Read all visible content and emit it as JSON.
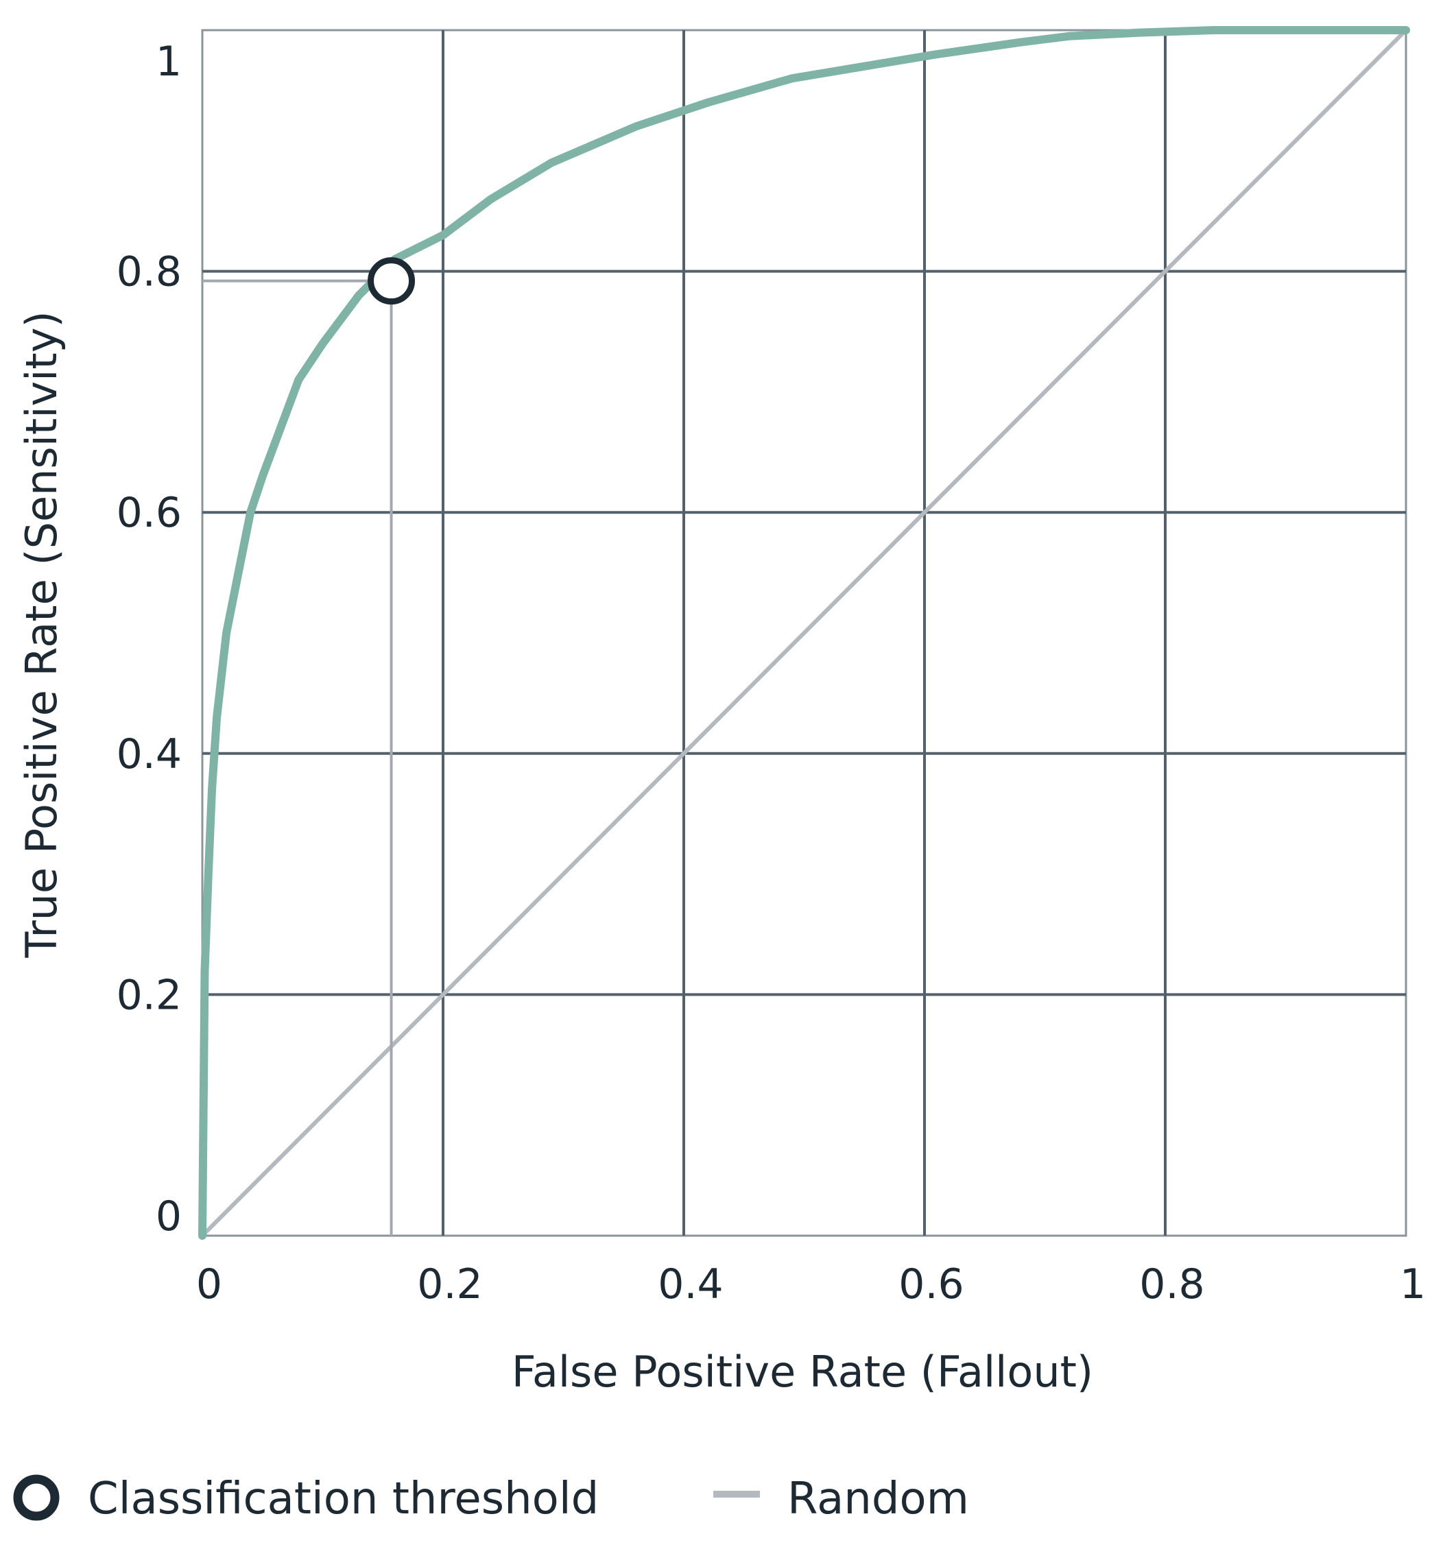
{
  "chart_data": {
    "type": "line",
    "xlabel": "False Positive Rate (Fallout)",
    "ylabel": "True Positive Rate (Sensitivity)",
    "xlim": [
      0,
      1
    ],
    "ylim": [
      0,
      1
    ],
    "x_ticks": [
      "0",
      "0.2",
      "0.4",
      "0.6",
      "0.8",
      "1"
    ],
    "y_ticks": [
      "0",
      "0.2",
      "0.4",
      "0.6",
      "0.8",
      "1"
    ],
    "x_tick_values": [
      0,
      0.2,
      0.4,
      0.6,
      0.8,
      1
    ],
    "y_tick_values": [
      0,
      0.2,
      0.4,
      0.6,
      0.8,
      1
    ],
    "grid": true,
    "series": [
      {
        "role": "roc-curve",
        "color": "#7fb3a6",
        "x": [
          0,
          0.002,
          0.005,
          0.008,
          0.012,
          0.02,
          0.03,
          0.04,
          0.05,
          0.065,
          0.08,
          0.1,
          0.13,
          0.16,
          0.2,
          0.24,
          0.29,
          0.36,
          0.42,
          0.49,
          0.55,
          0.61,
          0.68,
          0.72,
          0.78,
          0.84,
          0.9,
          0.96,
          1.0
        ],
        "y": [
          0,
          0.22,
          0.3,
          0.37,
          0.43,
          0.5,
          0.55,
          0.6,
          0.63,
          0.67,
          0.71,
          0.74,
          0.78,
          0.81,
          0.83,
          0.86,
          0.89,
          0.92,
          0.94,
          0.96,
          0.97,
          0.98,
          0.99,
          0.995,
          0.998,
          1.0,
          1.0,
          1.0,
          1.0
        ]
      },
      {
        "name": "Random",
        "role": "diagonal",
        "color": "#b3b9bf",
        "x": [
          0,
          1
        ],
        "y": [
          0,
          1
        ]
      }
    ],
    "threshold_point": {
      "x": 0.157,
      "y": 0.792
    },
    "legend": {
      "placement": "bottom-left",
      "items": [
        {
          "label": "Classification threshold",
          "icon": "circle-marker-icon"
        },
        {
          "label": "Random",
          "icon": "gray-line-icon",
          "color": "#b3b9bf"
        }
      ]
    },
    "colors": {
      "grid": "#53616d",
      "frame": "#8a949c",
      "threshold_marker_stroke": "#1e2a33",
      "guide": "#a3a7b0"
    }
  }
}
